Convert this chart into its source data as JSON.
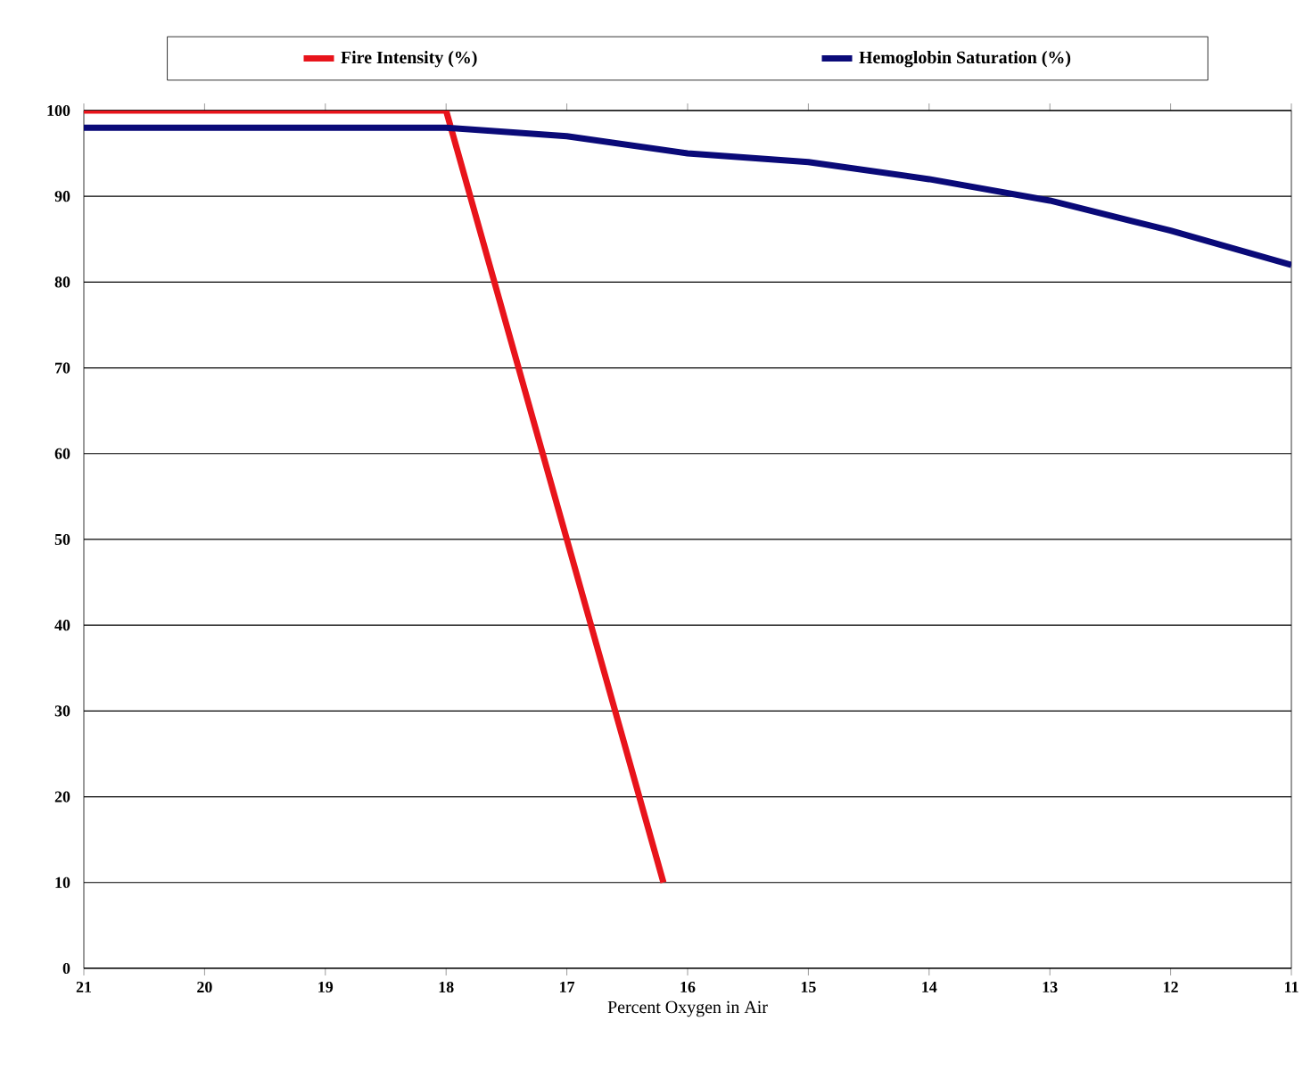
{
  "chart_data": {
    "type": "line",
    "xlabel": "Percent Oxygen in Air",
    "xlim": [
      21,
      11
    ],
    "xticks": [
      21,
      20,
      19,
      18,
      17,
      16,
      15,
      14,
      13,
      12,
      11
    ],
    "ylim": [
      0,
      100
    ],
    "yticks": [
      0,
      10,
      20,
      30,
      40,
      50,
      60,
      70,
      80,
      90,
      100
    ],
    "grid": "y",
    "legend": "top",
    "marker": "none",
    "line_style": "solid",
    "series": [
      {
        "name": "Fire Intensity (%)",
        "color": "#e8141b",
        "x": [
          21,
          18,
          16.2
        ],
        "values": [
          100,
          100,
          10
        ]
      },
      {
        "name": "Hemoglobin Saturation (%)",
        "color": "#0a0a78",
        "x": [
          21,
          20,
          19,
          18,
          17,
          16,
          15,
          14,
          13,
          12,
          11
        ],
        "values": [
          98,
          98,
          98,
          98,
          97,
          95,
          94,
          92,
          89.5,
          86,
          82
        ]
      }
    ]
  }
}
